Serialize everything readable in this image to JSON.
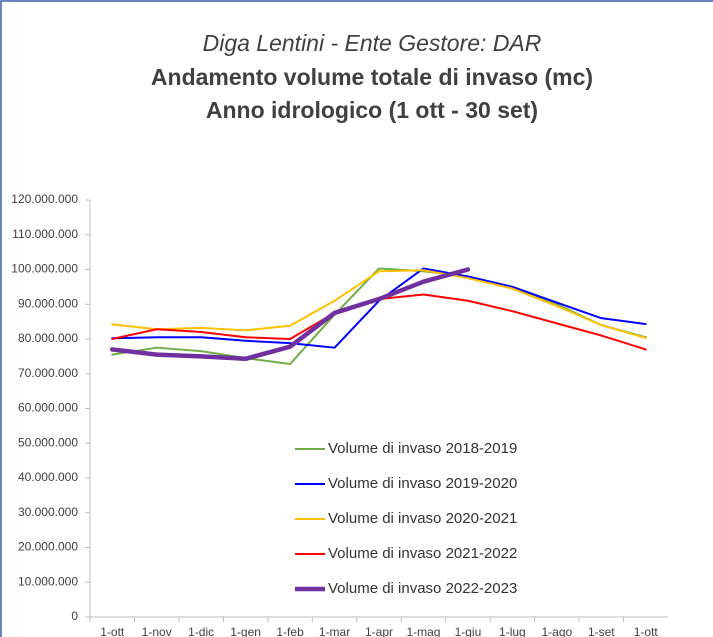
{
  "chart_data": {
    "type": "line",
    "title": "Diga Lentini - Ente Gestore: DAR",
    "subtitle": [
      "Andamento volume totale di invaso (mc)",
      "Anno idrologico (1 ott - 30 set)"
    ],
    "categories": [
      "1-ott",
      "1-nov",
      "1-dic",
      "1-gen",
      "1-feb",
      "1-mar",
      "1-apr",
      "1-mag",
      "1-giu",
      "1-lug",
      "1-ago",
      "1-set",
      "1-ott"
    ],
    "series": [
      {
        "name": "Volume di invaso 2018-2019",
        "color": "#70ad47",
        "values": [
          75500000,
          77500000,
          76500000,
          74500000,
          72800000,
          87000000,
          100300000,
          99500000,
          98000000,
          95000000,
          90000000,
          84000000,
          80500000
        ]
      },
      {
        "name": "Volume di invaso 2019-2020",
        "color": "#0000ff",
        "values": [
          80200000,
          80500000,
          80500000,
          79500000,
          78800000,
          77500000,
          91000000,
          100300000,
          98000000,
          95000000,
          90500000,
          86000000,
          84300000
        ]
      },
      {
        "name": "Volume di invaso 2020-2021",
        "color": "#ffc000",
        "values": [
          84200000,
          82800000,
          83200000,
          82500000,
          83800000,
          91000000,
          99500000,
          99800000,
          97500000,
          94500000,
          89500000,
          84000000,
          80300000
        ]
      },
      {
        "name": "Volume di invaso 2021-2022",
        "color": "#ff0000",
        "values": [
          80000000,
          82800000,
          82000000,
          80500000,
          80000000,
          87500000,
          91500000,
          92800000,
          91000000,
          88000000,
          84500000,
          81000000,
          77000000
        ]
      },
      {
        "name": "Volume di invaso 2022-2023",
        "color": "#7030a0",
        "values": [
          77000000,
          75500000,
          75000000,
          74300000,
          77800000,
          87500000,
          91500000,
          96500000,
          100000000,
          null,
          null,
          null,
          null
        ]
      }
    ],
    "ylim": [
      0,
      120000000
    ],
    "yticks": [
      0,
      {
        "value": 10000000,
        "label": "10.000.000"
      },
      {
        "value": 20000000,
        "label": "20.000.000"
      },
      {
        "value": 30000000,
        "label": "30.000.000"
      },
      {
        "value": 40000000,
        "label": "40.000.000"
      },
      {
        "value": 50000000,
        "label": "50.000.000"
      },
      {
        "value": 60000000,
        "label": "60.000.000"
      },
      {
        "value": 70000000,
        "label": "70.000.000"
      },
      {
        "value": 80000000,
        "label": "80.000.000"
      },
      {
        "value": 90000000,
        "label": "90.000.000"
      },
      {
        "value": 100000000,
        "label": "100.000.000"
      },
      {
        "value": 110000000,
        "label": "110.000.000"
      },
      {
        "value": 120000000,
        "label": "120.000.000"
      }
    ],
    "grid": false
  }
}
